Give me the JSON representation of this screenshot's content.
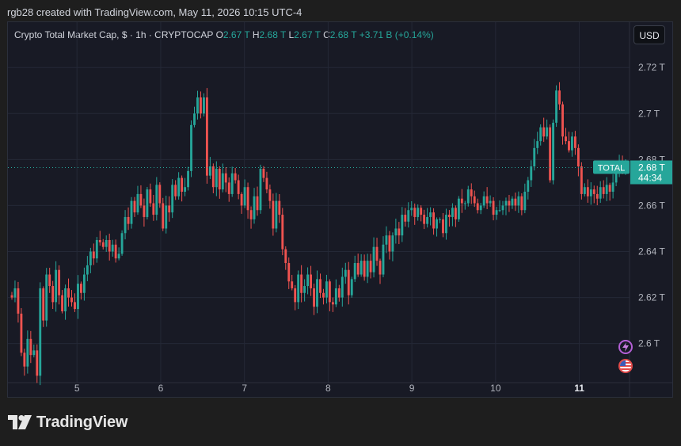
{
  "credit": "rgb28 created with TradingView.com, May 11, 2026 10:15 UTC-4",
  "legend": {
    "title": "Crypto Total Market Cap, $ · 1h · CRYPTOCAP",
    "o_label": "O",
    "o_val": "2.67 T",
    "h_label": "H",
    "h_val": "2.68 T",
    "l_label": "L",
    "l_val": "2.67 T",
    "c_label": "C",
    "c_val": "2.68 T",
    "change": "+3.71 B (+0.14%)"
  },
  "currency_button": "USD",
  "price_tag": {
    "symbol": "TOTAL",
    "price": "2.68 T",
    "countdown": "44:34"
  },
  "brand": "TradingView",
  "icons": {
    "flash": "flash-icon",
    "flag": "us-flag-icon"
  },
  "colors": {
    "up": "#26a69a",
    "down": "#ef5350",
    "background": "#181a25",
    "grid": "#242836"
  },
  "chart_data": {
    "type": "candlestick",
    "title": "Crypto Total Market Cap, $ · 1h · CRYPTOCAP",
    "ylim": [
      2.583,
      2.728
    ],
    "yticks": [
      2.6,
      2.62,
      2.64,
      2.66,
      2.68,
      2.7,
      2.72
    ],
    "ytick_labels": [
      "2.6 T",
      "2.62 T",
      "2.64 T",
      "2.66 T",
      "2.68 T",
      "2.7 T",
      "2.72 T"
    ],
    "xticks": [
      5,
      6,
      7,
      8,
      9,
      10,
      11
    ],
    "xtick_labels": [
      "5",
      "6",
      "7",
      "8",
      "9",
      "10",
      "11"
    ],
    "xlim": [
      4.175,
      11.6
    ],
    "bold_xtick": "11",
    "last_price": 2.6765,
    "grid": true,
    "close_start": 2.621,
    "closes": [
      2.62,
      2.624,
      2.613,
      2.596,
      2.59,
      2.602,
      2.595,
      2.597,
      2.586,
      2.624,
      2.61,
      2.63,
      2.625,
      2.618,
      2.632,
      2.621,
      2.614,
      2.624,
      2.62,
      2.618,
      2.615,
      2.626,
      2.622,
      2.63,
      2.634,
      2.64,
      2.637,
      2.645,
      2.644,
      2.642,
      2.645,
      2.64,
      2.643,
      2.637,
      2.639,
      2.648,
      2.655,
      2.652,
      2.662,
      2.657,
      2.665,
      2.66,
      2.655,
      2.667,
      2.661,
      2.656,
      2.669,
      2.661,
      2.65,
      2.66,
      2.657,
      2.669,
      2.664,
      2.672,
      2.666,
      2.668,
      2.675,
      2.695,
      2.7,
      2.707,
      2.7,
      2.707,
      2.673,
      2.677,
      2.668,
      2.676,
      2.667,
      2.674,
      2.67,
      2.665,
      2.674,
      2.671,
      2.665,
      2.66,
      2.668,
      2.658,
      2.654,
      2.664,
      2.658,
      2.676,
      2.672,
      2.667,
      2.662,
      2.65,
      2.662,
      2.656,
      2.641,
      2.635,
      2.627,
      2.624,
      2.618,
      2.63,
      2.622,
      2.625,
      2.63,
      2.624,
      2.616,
      2.628,
      2.622,
      2.62,
      2.627,
      2.618,
      2.617,
      2.624,
      2.62,
      2.629,
      2.632,
      2.621,
      2.628,
      2.635,
      2.63,
      2.636,
      2.629,
      2.636,
      2.631,
      2.642,
      2.636,
      2.63,
      2.643,
      2.647,
      2.64,
      2.647,
      2.65,
      2.647,
      2.656,
      2.653,
      2.658,
      2.659,
      2.655,
      2.659,
      2.656,
      2.652,
      2.655,
      2.657,
      2.65,
      2.654,
      2.654,
      2.648,
      2.656,
      2.655,
      2.659,
      2.654,
      2.663,
      2.661,
      2.661,
      2.667,
      2.664,
      2.661,
      2.658,
      2.66,
      2.664,
      2.661,
      2.662,
      2.656,
      2.658,
      2.658,
      2.66,
      2.662,
      2.66,
      2.663,
      2.66,
      2.664,
      2.658,
      2.666,
      2.671,
      2.677,
      2.685,
      2.688,
      2.694,
      2.69,
      2.694,
      2.671,
      2.696,
      2.71,
      2.704,
      2.69,
      2.688,
      2.684,
      2.69,
      2.685,
      2.677,
      2.665,
      2.668,
      2.664,
      2.667,
      2.665,
      2.663,
      2.668,
      2.665,
      2.669,
      2.666,
      2.67,
      2.674,
      2.678,
      2.676,
      2.6765
    ]
  }
}
